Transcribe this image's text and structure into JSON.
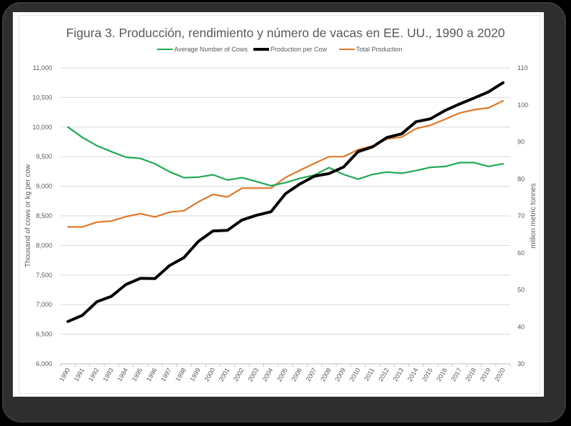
{
  "chart_data": {
    "type": "line",
    "title": "Figura 3. Producción, rendimiento y número de vacas en EE. UU., 1990 a 2020",
    "xlabel": "",
    "ylabel": "Thousand of cows or kg per cow",
    "y2label": "million metric tonnes",
    "ylim": [
      6000,
      11000
    ],
    "y2lim": [
      30,
      110
    ],
    "yticks": [
      "6,000",
      "6,500",
      "7,000",
      "7,500",
      "8,000",
      "8,500",
      "9,000",
      "9,500",
      "10,000",
      "10,500",
      "11,000"
    ],
    "y2ticks": [
      "30",
      "40",
      "50",
      "60",
      "70",
      "80",
      "90",
      "100",
      "110"
    ],
    "grid": true,
    "legend_position": "top-center",
    "categories": [
      "1990",
      "1991",
      "1992",
      "1993",
      "1994",
      "1995",
      "1996",
      "1997",
      "1998",
      "1999",
      "2000",
      "2001",
      "2002",
      "2003",
      "2004",
      "2005",
      "2006",
      "2007",
      "2008",
      "2009",
      "2010",
      "2011",
      "2012",
      "2013",
      "2014",
      "2015",
      "2016",
      "2017",
      "2018",
      "2019",
      "2020"
    ],
    "series": [
      {
        "name": "Average Number of Cows",
        "axis": "left",
        "color": "#1faa55",
        "values": [
          10000,
          9825,
          9685,
          9585,
          9490,
          9470,
          9380,
          9245,
          9145,
          9155,
          9195,
          9105,
          9145,
          9080,
          9010,
          9060,
          9135,
          9190,
          9315,
          9200,
          9120,
          9200,
          9240,
          9220,
          9265,
          9320,
          9335,
          9400,
          9400,
          9335,
          9380
        ]
      },
      {
        "name": "Production per Cow",
        "axis": "left",
        "color": "#000000",
        "values": [
          6715,
          6820,
          7050,
          7140,
          7340,
          7445,
          7440,
          7660,
          7795,
          8070,
          8245,
          8255,
          8430,
          8510,
          8570,
          8875,
          9040,
          9170,
          9215,
          9325,
          9585,
          9665,
          9825,
          9885,
          10090,
          10140,
          10280,
          10390,
          10490,
          10595,
          10750
        ]
      },
      {
        "name": "Total Production",
        "axis": "right",
        "color": "#e0782a",
        "values": [
          67.0,
          67.0,
          68.3,
          68.6,
          69.8,
          70.6,
          69.7,
          71.0,
          71.4,
          73.8,
          75.8,
          75.1,
          77.5,
          77.5,
          77.5,
          80.4,
          82.3,
          84.2,
          86.0,
          86.0,
          87.9,
          88.9,
          90.8,
          91.3,
          93.6,
          94.5,
          96.1,
          97.8,
          98.7,
          99.2,
          101.1
        ]
      }
    ]
  }
}
